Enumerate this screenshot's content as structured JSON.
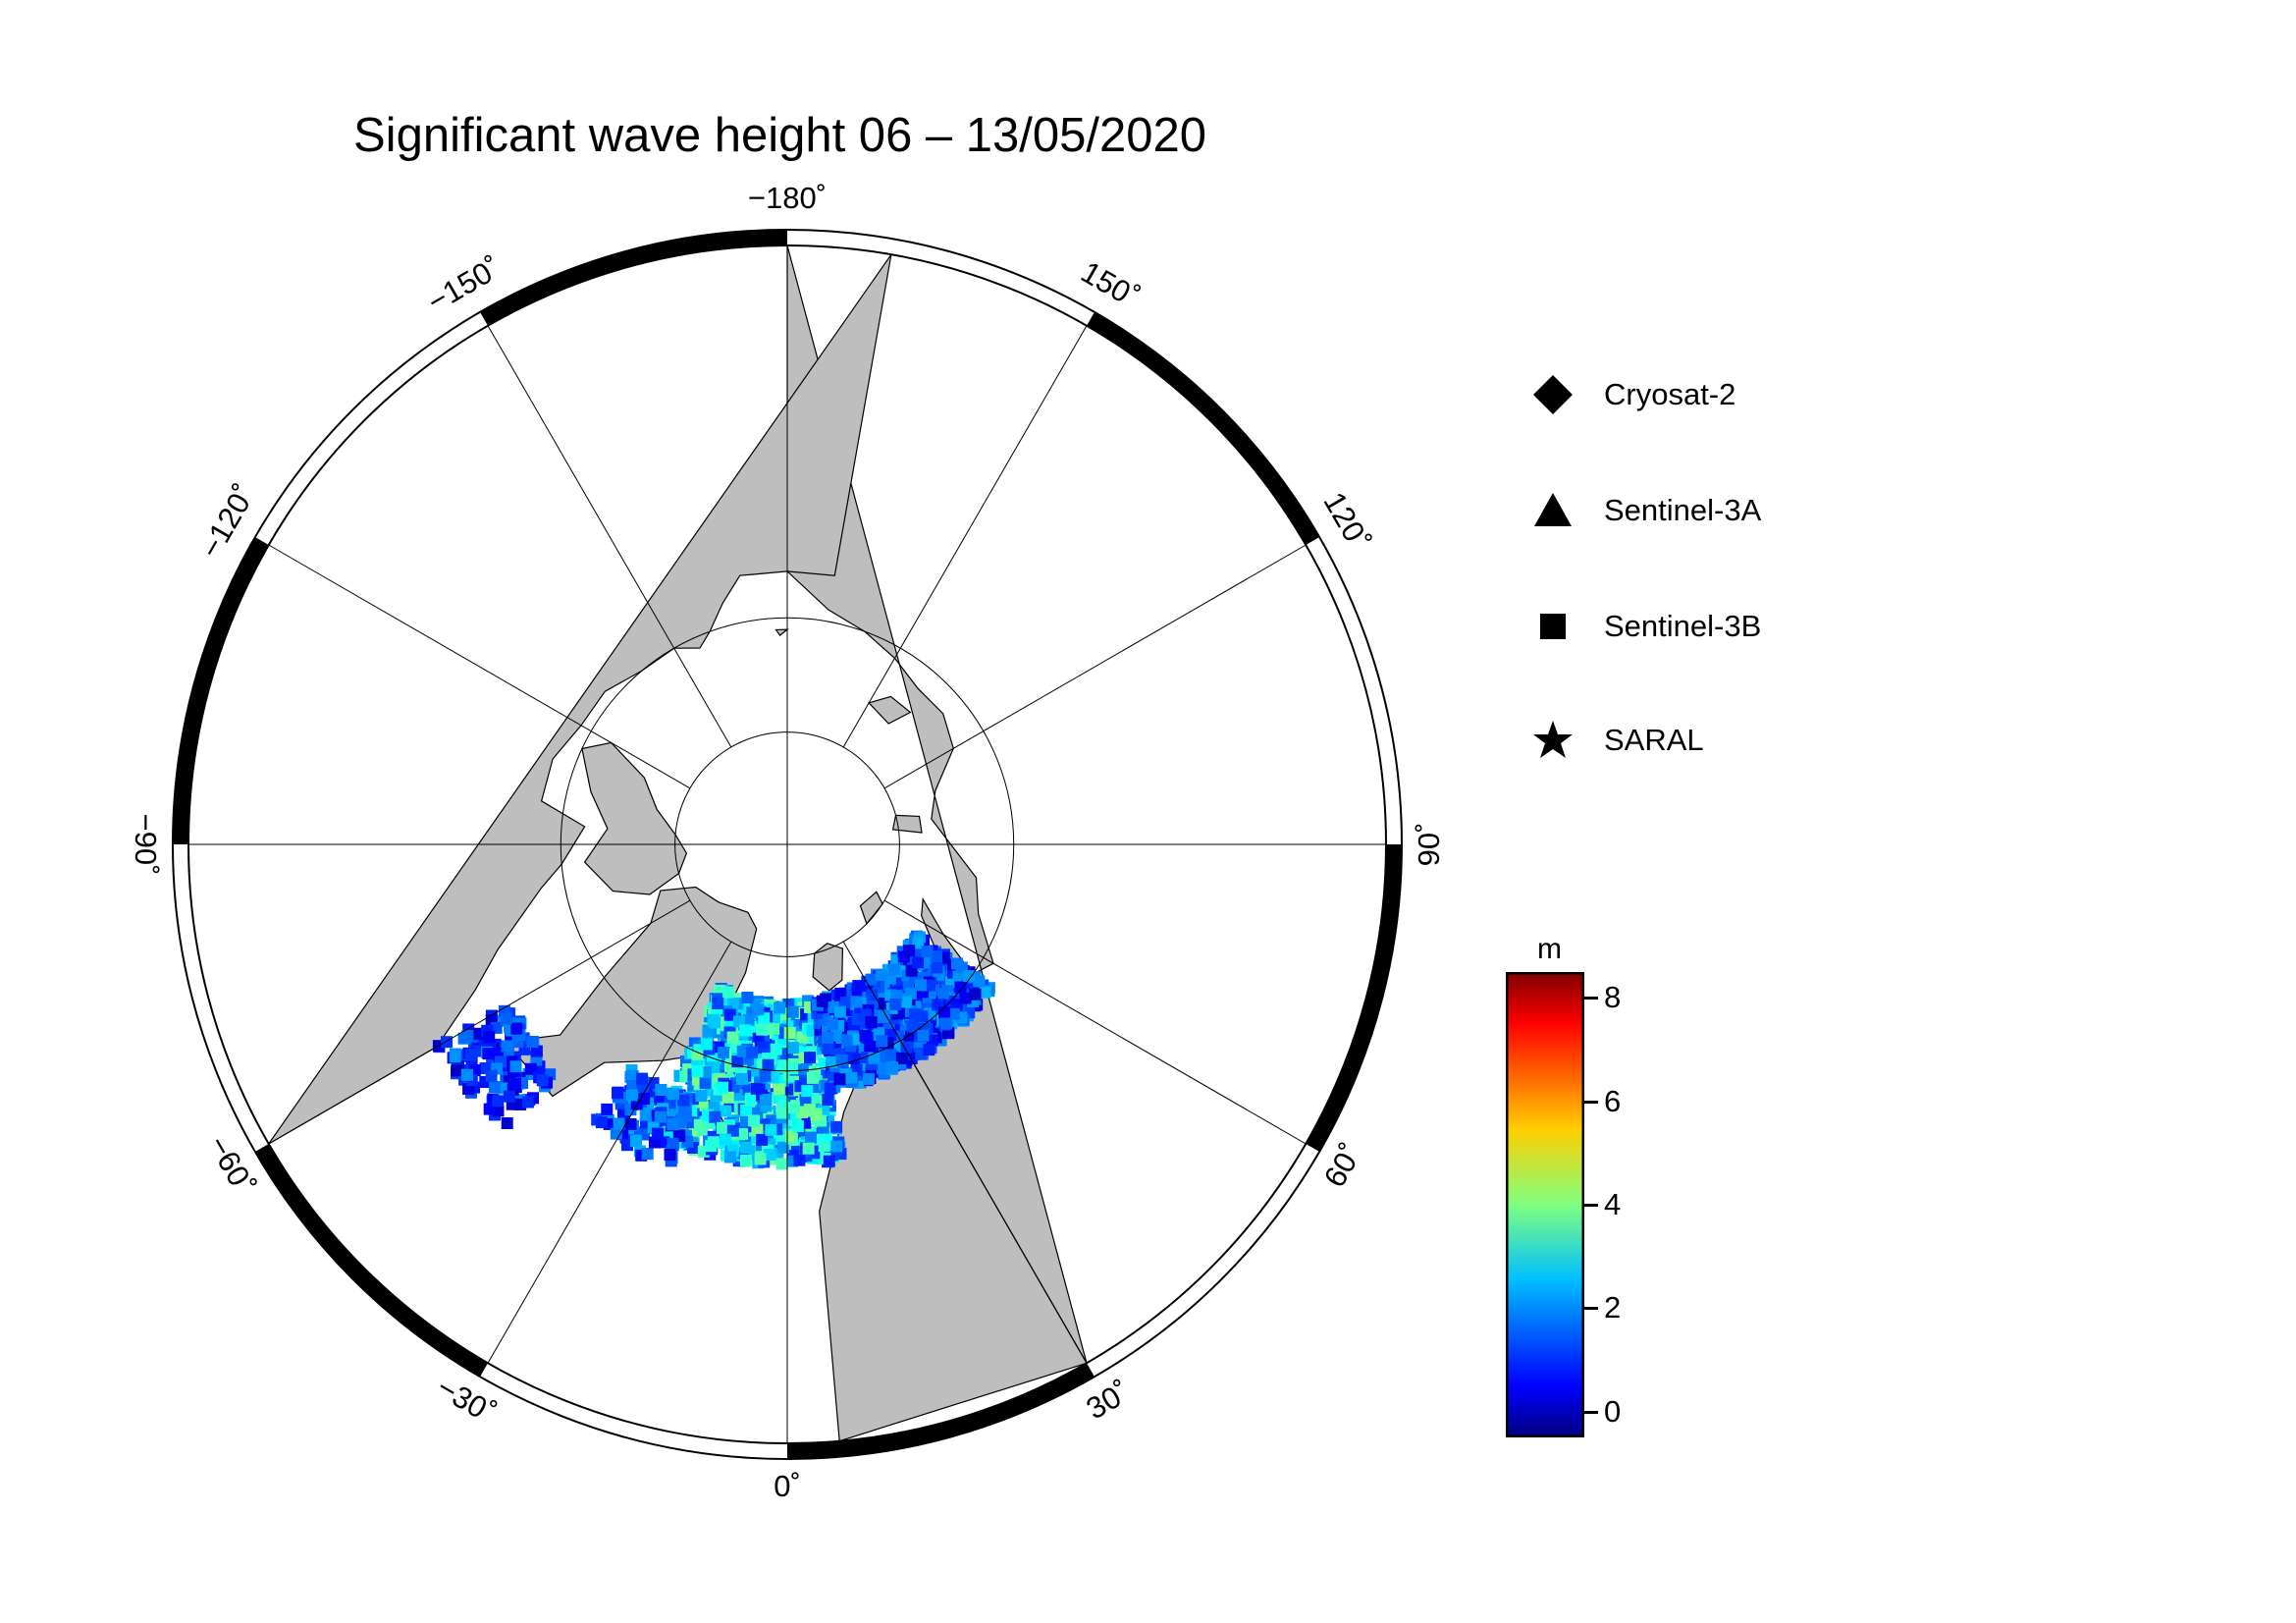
{
  "title": "Significant wave height 06 – 13/05/2020",
  "map": {
    "projection": "north-polar-stereographic",
    "longitude_labels": [
      {
        "text": "−180˚",
        "lon": 180
      },
      {
        "text": "150˚",
        "lon": 150
      },
      {
        "text": "120˚",
        "lon": 120
      },
      {
        "text": "90˚",
        "lon": 90
      },
      {
        "text": "60˚",
        "lon": 60
      },
      {
        "text": "30˚",
        "lon": 30
      },
      {
        "text": "0˚",
        "lon": 0
      },
      {
        "text": "−30˚",
        "lon": -30
      },
      {
        "text": "−60˚",
        "lon": -60
      },
      {
        "text": "−90˚",
        "lon": -90
      },
      {
        "text": "−120˚",
        "lon": -120
      },
      {
        "text": "−150˚",
        "lon": -150
      }
    ],
    "colors": {
      "land": "#bebebe",
      "ocean": "#ffffff",
      "frame": "#000000"
    }
  },
  "legend": {
    "items": [
      {
        "label": "Cryosat-2",
        "symbol": "diamond-icon"
      },
      {
        "label": "Sentinel-3A",
        "symbol": "triangle-icon"
      },
      {
        "label": "Sentinel-3B",
        "symbol": "square-icon"
      },
      {
        "label": "SARAL",
        "symbol": "star-icon"
      }
    ]
  },
  "colorbar": {
    "unit": "m",
    "ticks": [
      "8",
      "6",
      "4",
      "2",
      "0"
    ],
    "tick_values": [
      8,
      6,
      4,
      2,
      0
    ],
    "range": [
      -0.5,
      8.5
    ],
    "colormap": "jet"
  }
}
